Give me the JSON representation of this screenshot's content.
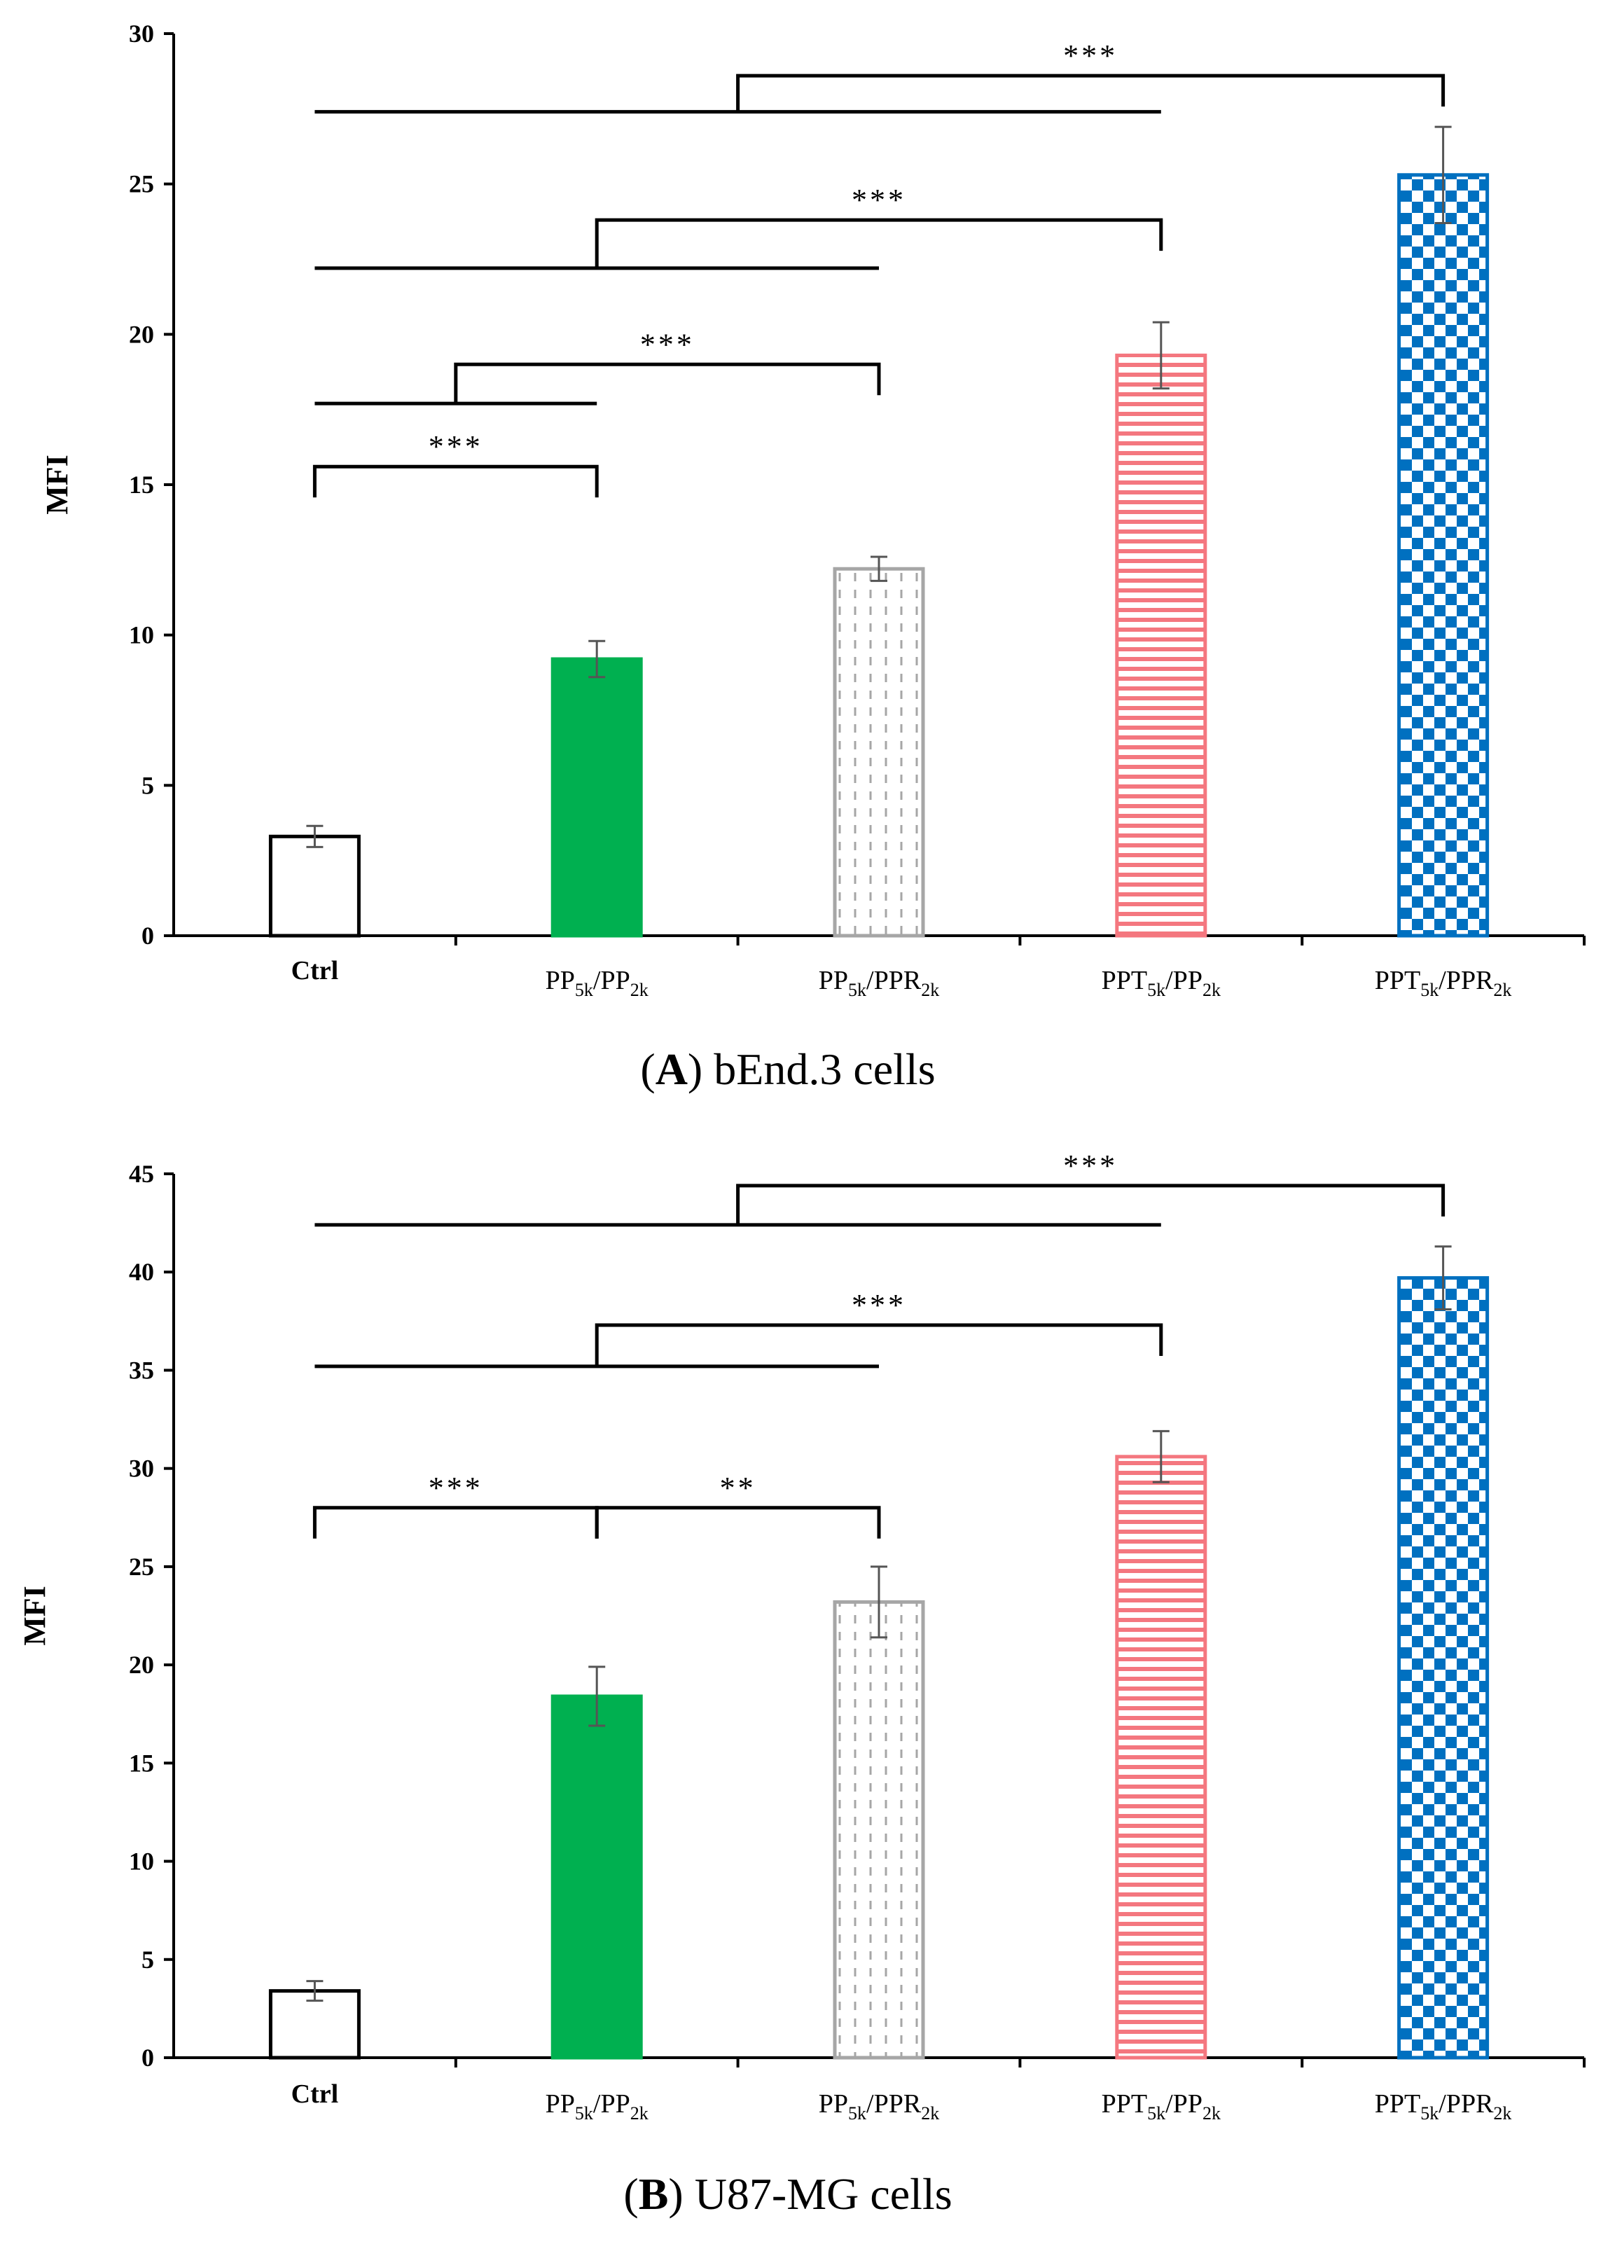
{
  "colors": {
    "ctrl": "#ffffff",
    "green": "#00b050",
    "gray": "#a6a6a6",
    "pink": "#f4777f",
    "blue": "#0070c0"
  },
  "chart_data": [
    {
      "type": "bar",
      "panel": "A",
      "caption_letter": "A",
      "caption_rest": ") bEnd.3 cells",
      "ylabel": "MFI",
      "ylim": [
        0,
        30
      ],
      "yticks": [
        0,
        5,
        10,
        15,
        20,
        25,
        30
      ],
      "categories": [
        {
          "main": "Ctrl",
          "bold": true
        },
        {
          "parts": [
            [
              "PP",
              ""
            ],
            [
              "5k",
              "sub"
            ],
            [
              "/PP",
              ""
            ],
            [
              "2k",
              "sub"
            ]
          ]
        },
        {
          "parts": [
            [
              "PP",
              ""
            ],
            [
              "5k",
              "sub"
            ],
            [
              "/PPR",
              ""
            ],
            [
              "2k",
              "sub"
            ]
          ]
        },
        {
          "parts": [
            [
              "PPT",
              ""
            ],
            [
              "5k",
              "sub"
            ],
            [
              "/PP",
              ""
            ],
            [
              "2k",
              "sub"
            ]
          ]
        },
        {
          "parts": [
            [
              "PPT",
              ""
            ],
            [
              "5k",
              "sub"
            ],
            [
              "/PPR",
              ""
            ],
            [
              "2k",
              "sub"
            ]
          ]
        }
      ],
      "values": [
        3.3,
        9.2,
        12.2,
        19.3,
        25.3
      ],
      "errors": [
        0.35,
        0.6,
        0.4,
        1.1,
        1.6
      ],
      "patterns": [
        "ctrl",
        "green",
        "gray",
        "pink",
        "blue"
      ],
      "significance": [
        {
          "label": "***",
          "from": 0,
          "to": 1,
          "level": 15.6
        },
        {
          "label": "***",
          "from": 1,
          "to": 2,
          "level": 19.0,
          "bar_to": 1,
          "bar_level": 17.7
        },
        {
          "label": "***",
          "from": 2,
          "to": 3,
          "level": 23.8,
          "bar_to": 2,
          "bar_level": 22.2
        },
        {
          "label": "***",
          "from": 3,
          "to": 4,
          "level": 28.6,
          "bar_to": 3,
          "bar_level": 27.4
        }
      ]
    },
    {
      "type": "bar",
      "panel": "B",
      "caption_letter": "B",
      "caption_rest": ") U87-MG cells",
      "ylabel": "MFI",
      "ylim": [
        0,
        45
      ],
      "yticks": [
        0,
        5,
        10,
        15,
        20,
        25,
        30,
        35,
        40,
        45
      ],
      "categories": [
        {
          "main": "Ctrl",
          "bold": true
        },
        {
          "parts": [
            [
              "PP",
              ""
            ],
            [
              "5k",
              "sub"
            ],
            [
              "/PP",
              ""
            ],
            [
              "2k",
              "sub"
            ]
          ]
        },
        {
          "parts": [
            [
              "PP",
              ""
            ],
            [
              "5k",
              "sub"
            ],
            [
              "/PPR",
              ""
            ],
            [
              "2k",
              "sub"
            ]
          ]
        },
        {
          "parts": [
            [
              "PPT",
              ""
            ],
            [
              "5k",
              "sub"
            ],
            [
              "/PP",
              ""
            ],
            [
              "2k",
              "sub"
            ]
          ]
        },
        {
          "parts": [
            [
              "PPT",
              ""
            ],
            [
              "5k",
              "sub"
            ],
            [
              "/PPR",
              ""
            ],
            [
              "2k",
              "sub"
            ]
          ]
        }
      ],
      "values": [
        3.4,
        18.4,
        23.2,
        30.6,
        39.7
      ],
      "errors": [
        0.5,
        1.5,
        1.8,
        1.3,
        1.6
      ],
      "patterns": [
        "ctrl",
        "green",
        "gray",
        "pink",
        "blue"
      ],
      "significance": [
        {
          "label": "***",
          "from": 0,
          "to": 1,
          "level": 28.0
        },
        {
          "label": "**",
          "from": 1,
          "to": 2,
          "level": 28.0
        },
        {
          "label": "***",
          "from": 2,
          "to": 3,
          "level": 37.3,
          "bar_to": 2,
          "bar_level": 35.2
        },
        {
          "label": "***",
          "from": 3,
          "to": 4,
          "level": 44.4,
          "bar_to": 3,
          "bar_level": 42.4
        }
      ]
    }
  ]
}
